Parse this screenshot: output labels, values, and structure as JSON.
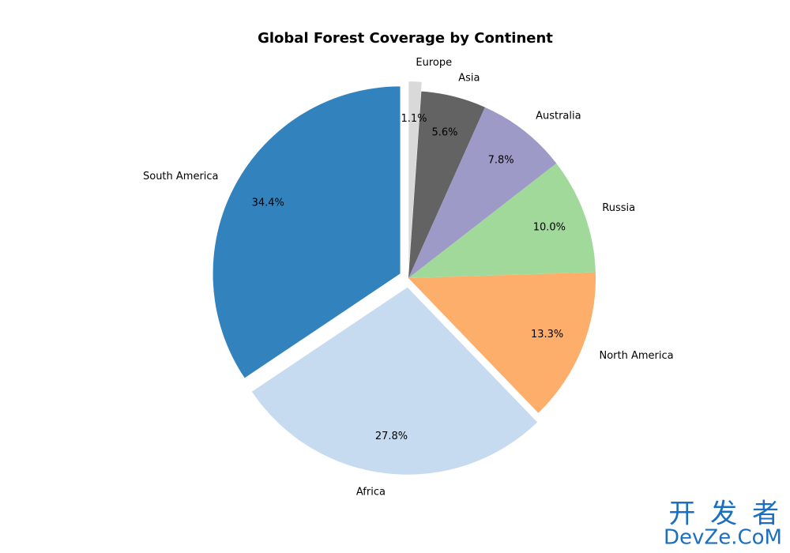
{
  "chart_data": {
    "type": "pie",
    "title": "Global Forest Coverage by Continent",
    "categories": [
      "South America",
      "Africa",
      "North America",
      "Russia",
      "Australia",
      "Asia",
      "Europe"
    ],
    "values": [
      34.4,
      27.8,
      13.3,
      10.0,
      7.8,
      5.6,
      1.1
    ],
    "value_labels": [
      "34.4%",
      "27.8%",
      "13.3%",
      "10.0%",
      "7.8%",
      "5.6%",
      "1.1%"
    ],
    "colors": [
      "#3182bd",
      "#c6dbef",
      "#fdae6b",
      "#a1d99b",
      "#9e9ac8",
      "#636363",
      "#d9d9d9"
    ],
    "explode": [
      0.05,
      0.05,
      0,
      0,
      0,
      0,
      0.05
    ],
    "start_angle": 90
  },
  "watermark": {
    "top": "开 发 者",
    "bottom": "DevZe.CoM"
  }
}
